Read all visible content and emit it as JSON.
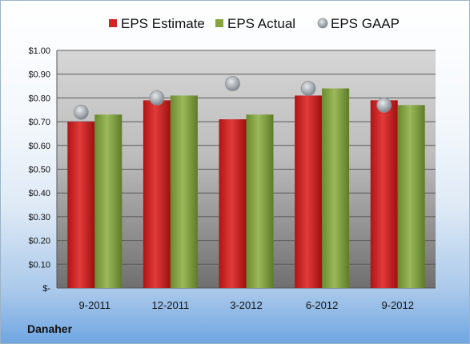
{
  "company": "Danaher",
  "colors": {
    "estimate": "#cc1f1f",
    "actual": "#7a9a3a",
    "gaap": "#b0b6bc"
  },
  "chart_data": {
    "type": "bar",
    "categories": [
      "9-2011",
      "12-2011",
      "3-2012",
      "6-2012",
      "9-2012"
    ],
    "series": [
      {
        "name": "EPS Estimate",
        "kind": "bar",
        "values": [
          0.7,
          0.79,
          0.71,
          0.81,
          0.79
        ]
      },
      {
        "name": "EPS Actual",
        "kind": "bar",
        "values": [
          0.73,
          0.81,
          0.73,
          0.84,
          0.77
        ]
      },
      {
        "name": "EPS GAAP",
        "kind": "scatter",
        "values": [
          0.74,
          0.8,
          0.86,
          0.84,
          0.77
        ]
      }
    ],
    "y_ticks": [
      {
        "value": 0.0,
        "label": "$-"
      },
      {
        "value": 0.1,
        "label": "$0.10"
      },
      {
        "value": 0.2,
        "label": "$0.20"
      },
      {
        "value": 0.3,
        "label": "$0.30"
      },
      {
        "value": 0.4,
        "label": "$0.40"
      },
      {
        "value": 0.5,
        "label": "$0.50"
      },
      {
        "value": 0.6,
        "label": "$0.60"
      },
      {
        "value": 0.7,
        "label": "$0.70"
      },
      {
        "value": 0.8,
        "label": "$0.80"
      },
      {
        "value": 0.9,
        "label": "$0.90"
      },
      {
        "value": 1.0,
        "label": "$1.00"
      }
    ],
    "ylim": [
      0,
      1.0
    ],
    "grid": true,
    "legend": "top"
  }
}
